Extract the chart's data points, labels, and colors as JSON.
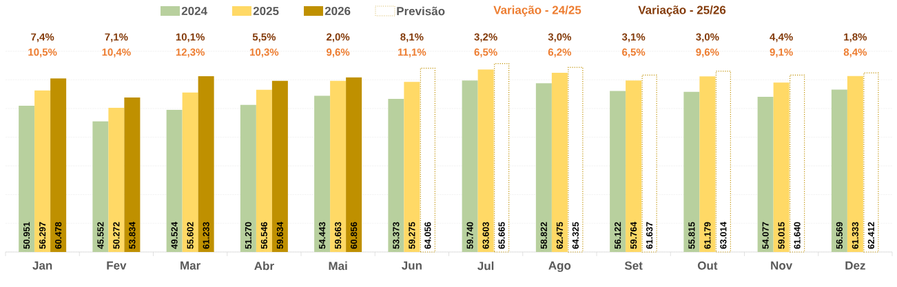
{
  "chart_data": {
    "type": "bar",
    "categories": [
      "Jan",
      "Fev",
      "Mar",
      "Abr",
      "Mai",
      "Jun",
      "Jul",
      "Ago",
      "Set",
      "Out",
      "Nov",
      "Dez"
    ],
    "series": [
      {
        "name": "2024",
        "color": "#b8d09e",
        "values": [
          50951,
          45552,
          49524,
          51270,
          54443,
          53373,
          59740,
          58822,
          56122,
          55815,
          54077,
          56569
        ],
        "value_labels": [
          "50.951",
          "45.552",
          "49.524",
          "51.270",
          "54.443",
          "53.373",
          "59.740",
          "58.822",
          "56.122",
          "55.815",
          "54.077",
          "56.569"
        ]
      },
      {
        "name": "2025",
        "color": "#ffd966",
        "values": [
          56297,
          50272,
          55602,
          56546,
          59663,
          59275,
          63603,
          62475,
          59764,
          61179,
          59015,
          61333
        ],
        "value_labels": [
          "56.297",
          "50.272",
          "55.602",
          "56.546",
          "59.663",
          "59.275",
          "63.603",
          "62.475",
          "59.764",
          "61.179",
          "59.015",
          "61.333"
        ]
      },
      {
        "name": "2026",
        "color": "#bf9000",
        "values": [
          60478,
          53834,
          61233,
          59634,
          60856,
          null,
          null,
          null,
          null,
          null,
          null,
          null
        ],
        "value_labels": [
          "60.478",
          "53.834",
          "61.233",
          "59.634",
          "60.856",
          null,
          null,
          null,
          null,
          null,
          null,
          null
        ]
      },
      {
        "name": "Previsão",
        "color": "#bf9000",
        "line_style": "dotted",
        "values": [
          null,
          null,
          null,
          null,
          null,
          64056,
          65665,
          64325,
          61637,
          63014,
          61640,
          62412
        ],
        "value_labels": [
          null,
          null,
          null,
          null,
          null,
          "64.056",
          "65.665",
          "64.325",
          "61.637",
          "63.014",
          "61.640",
          "62.412"
        ]
      }
    ],
    "annotations": [
      "Variação - 24/25",
      "Variação - 25/26",
      "7,4%",
      "10,5%",
      "7,1%",
      "10,4%",
      "10,1%",
      "12,3%",
      "5,5%",
      "10,3%",
      "2,0%",
      "9,6%",
      "8,1%",
      "11,1%",
      "3,2%",
      "6,5%",
      "3,0%",
      "6,2%",
      "3,1%",
      "6,5%",
      "3,0%",
      "9,6%",
      "4,4%",
      "9,1%",
      "1,8%",
      "8,4%"
    ],
    "grid": "y",
    "legend": "top",
    "tick_labels": "x"
  }
}
